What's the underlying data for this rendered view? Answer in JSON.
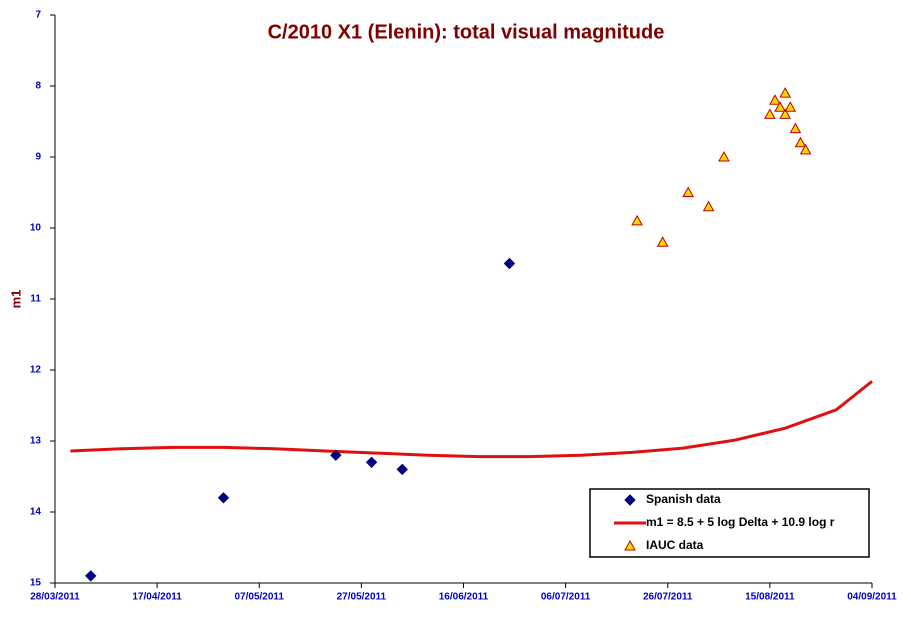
{
  "chart_data": {
    "type": "scatter",
    "title": "C/2010 X1 (Elenin):  total visual magnitude",
    "y_label": "m1",
    "xlim": [
      "28/03/2011",
      "04/09/2011"
    ],
    "xticks": [
      "28/03/2011",
      "17/04/2011",
      "07/05/2011",
      "27/05/2011",
      "16/06/2011",
      "06/07/2011",
      "26/07/2011",
      "15/08/2011",
      "04/09/2011"
    ],
    "ylim": [
      15,
      7
    ],
    "yticks": [
      7,
      8,
      9,
      10,
      11,
      12,
      13,
      14,
      15
    ],
    "legend": "lower right",
    "series": [
      {
        "name": "Spanish data",
        "type": "scatter",
        "marker": "diamond",
        "color": "#00007f",
        "x": [
          "04/04/2011",
          "30/04/2011",
          "22/05/2011",
          "29/05/2011",
          "04/06/2011",
          "25/06/2011"
        ],
        "values": [
          14.9,
          13.8,
          13.2,
          13.3,
          13.4,
          10.5
        ]
      },
      {
        "name": "m1 = 8.5 + 5 log Delta + 10.9 log r",
        "type": "line",
        "color": "#e01010",
        "x": [
          "31/03/2011",
          "10/04/2011",
          "20/04/2011",
          "30/04/2011",
          "10/05/2011",
          "20/05/2011",
          "30/05/2011",
          "09/06/2011",
          "19/06/2011",
          "29/06/2011",
          "09/07/2011",
          "19/07/2011",
          "29/07/2011",
          "08/08/2011",
          "18/08/2011",
          "28/08/2011",
          "04/09/2011"
        ],
        "values": [
          13.14,
          13.11,
          13.09,
          13.09,
          13.11,
          13.14,
          13.17,
          13.2,
          13.22,
          13.22,
          13.2,
          13.16,
          13.1,
          12.99,
          12.82,
          12.56,
          12.16
        ]
      },
      {
        "name": "IAUC data",
        "type": "scatter",
        "marker": "triangle",
        "color": "#ffd700",
        "x": [
          "20/07/2011",
          "25/07/2011",
          "30/07/2011",
          "03/08/2011",
          "06/08/2011",
          "15/08/2011",
          "16/08/2011",
          "17/08/2011",
          "18/08/2011",
          "18/08/2011",
          "19/08/2011",
          "20/08/2011",
          "21/08/2011",
          "22/08/2011"
        ],
        "values": [
          9.9,
          10.2,
          9.5,
          9.7,
          9.0,
          8.4,
          8.2,
          8.3,
          8.1,
          8.4,
          8.3,
          8.6,
          8.8,
          8.9
        ]
      }
    ]
  }
}
